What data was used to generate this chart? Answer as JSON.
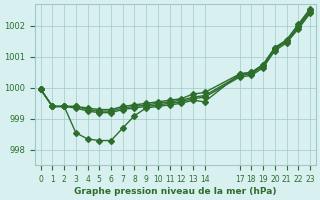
{
  "title": "Graphe pression niveau de la mer (hPa)",
  "background_color": "#d8f0f0",
  "grid_color": "#a0c8c8",
  "line_color": "#2d6e2d",
  "xlim": [
    -0.5,
    23.5
  ],
  "ylim": [
    997.5,
    1002.7
  ],
  "yticks": [
    998,
    999,
    1000,
    1001,
    1002
  ],
  "xtick_labels": [
    "0",
    "1",
    "2",
    "3",
    "4",
    "5",
    "6",
    "7",
    "8",
    "9",
    "10",
    "11",
    "12",
    "13",
    "14",
    "17",
    "18",
    "19",
    "20",
    "21",
    "22",
    "23"
  ],
  "xtick_positions": [
    0,
    1,
    2,
    3,
    4,
    5,
    6,
    7,
    8,
    9,
    10,
    11,
    12,
    13,
    14,
    17,
    18,
    19,
    20,
    21,
    22,
    23
  ],
  "line1": {
    "x": [
      0,
      1,
      2,
      3,
      4,
      5,
      6,
      7,
      8,
      9,
      10,
      11,
      12,
      13,
      14,
      17,
      18,
      19,
      20,
      21,
      22,
      23
    ],
    "y": [
      999.95,
      999.4,
      999.4,
      998.55,
      998.35,
      998.3,
      998.3,
      998.7,
      999.1,
      999.35,
      999.4,
      999.45,
      999.5,
      999.6,
      999.55,
      1000.45,
      1000.5,
      1000.75,
      1001.3,
      1001.5,
      1002.0,
      1002.5
    ]
  },
  "line2": {
    "x": [
      0,
      1,
      2,
      3,
      4,
      5,
      6,
      7,
      8,
      9,
      10,
      11,
      12,
      13,
      14,
      17,
      18,
      19,
      20,
      21,
      22,
      23
    ],
    "y": [
      999.95,
      999.4,
      999.4,
      999.4,
      999.35,
      999.3,
      999.3,
      999.4,
      999.45,
      999.5,
      999.55,
      999.6,
      999.65,
      999.8,
      999.85,
      1000.45,
      1000.5,
      1000.75,
      1001.3,
      1001.55,
      1002.05,
      1002.55
    ]
  },
  "line3": {
    "x": [
      0,
      1,
      2,
      3,
      4,
      5,
      6,
      7,
      8,
      9,
      10,
      11,
      12,
      13,
      14,
      17,
      18,
      19,
      20,
      21,
      22,
      23
    ],
    "y": [
      999.95,
      999.4,
      999.4,
      999.4,
      999.3,
      999.25,
      999.25,
      999.35,
      999.4,
      999.45,
      999.5,
      999.55,
      999.6,
      999.7,
      999.75,
      1000.4,
      1000.45,
      1000.7,
      1001.25,
      1001.5,
      1001.95,
      1002.45
    ]
  },
  "line4": {
    "x": [
      0,
      1,
      2,
      3,
      4,
      5,
      6,
      7,
      8,
      9,
      10,
      11,
      12,
      13,
      14,
      17,
      18,
      19,
      20,
      21,
      22,
      23
    ],
    "y": [
      999.95,
      999.4,
      999.4,
      999.35,
      999.25,
      999.2,
      999.2,
      999.3,
      999.35,
      999.4,
      999.45,
      999.5,
      999.55,
      999.65,
      999.7,
      1000.35,
      1000.4,
      1000.65,
      1001.2,
      1001.45,
      1001.9,
      1002.4
    ]
  }
}
